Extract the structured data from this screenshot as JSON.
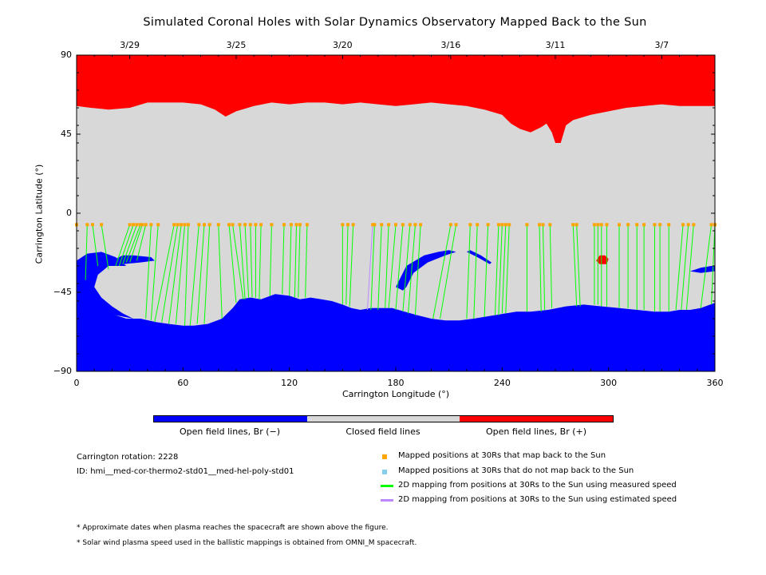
{
  "chart_data": {
    "type": "map",
    "title": "Simulated Coronal Holes with Solar Dynamics Observatory Mapped Back to the Sun",
    "xlabel": "Carrington Longitude (°)",
    "ylabel": "Carrington Latitude (°)",
    "xlim": [
      0,
      360
    ],
    "ylim": [
      -90,
      90
    ],
    "x_ticks": [
      "0",
      "60",
      "120",
      "180",
      "240",
      "300",
      "360"
    ],
    "y_ticks": [
      "90",
      "45",
      "0",
      "−45",
      "−90"
    ],
    "date_ticks": [
      {
        "label": "3/29",
        "lon": 30
      },
      {
        "label": "3/25",
        "lon": 90
      },
      {
        "label": "3/20",
        "lon": 150
      },
      {
        "label": "3/16",
        "lon": 211
      },
      {
        "label": "3/11",
        "lon": 270
      },
      {
        "label": "3/7",
        "lon": 330
      }
    ],
    "colors": {
      "open_negative": "#0000ff",
      "closed": "#d8d8d8",
      "open_positive": "#ff0000",
      "mapped_ok": "#ffa500",
      "not_mapped": "#87ceeb",
      "line_measured": "#00ff00",
      "line_estimated": "#bb88ff"
    },
    "regions": {
      "north_boundary": [
        [
          0,
          61
        ],
        [
          8,
          60
        ],
        [
          18,
          59
        ],
        [
          30,
          60
        ],
        [
          40,
          63
        ],
        [
          50,
          63
        ],
        [
          60,
          63
        ],
        [
          70,
          62
        ],
        [
          78,
          59
        ],
        [
          84,
          55
        ],
        [
          90,
          58
        ],
        [
          100,
          61
        ],
        [
          110,
          63
        ],
        [
          120,
          62
        ],
        [
          130,
          63
        ],
        [
          140,
          63
        ],
        [
          150,
          62
        ],
        [
          160,
          63
        ],
        [
          170,
          62
        ],
        [
          180,
          61
        ],
        [
          190,
          62
        ],
        [
          200,
          63
        ],
        [
          210,
          62
        ],
        [
          220,
          61
        ],
        [
          230,
          59
        ],
        [
          240,
          56
        ],
        [
          245,
          51
        ],
        [
          250,
          48
        ],
        [
          256,
          46
        ],
        [
          262,
          49
        ],
        [
          265,
          51
        ],
        [
          268,
          46
        ],
        [
          270,
          40
        ],
        [
          273,
          40
        ],
        [
          276,
          50
        ],
        [
          280,
          53
        ],
        [
          290,
          56
        ],
        [
          300,
          58
        ],
        [
          310,
          60
        ],
        [
          320,
          61
        ],
        [
          330,
          62
        ],
        [
          340,
          61
        ],
        [
          350,
          61
        ],
        [
          360,
          61
        ]
      ],
      "south_boundary": [
        [
          0,
          -36
        ],
        [
          5,
          -42
        ],
        [
          10,
          -48
        ],
        [
          16,
          -53
        ],
        [
          22,
          -58
        ],
        [
          28,
          -60
        ],
        [
          36,
          -60
        ],
        [
          45,
          -62
        ],
        [
          52,
          -63
        ],
        [
          60,
          -64
        ],
        [
          66,
          -64
        ],
        [
          74,
          -63
        ],
        [
          82,
          -60
        ],
        [
          88,
          -54
        ],
        [
          92,
          -49
        ],
        [
          98,
          -48
        ],
        [
          104,
          -49
        ],
        [
          112,
          -46
        ],
        [
          120,
          -47
        ],
        [
          126,
          -49
        ],
        [
          132,
          -48
        ],
        [
          138,
          -49
        ],
        [
          144,
          -50
        ],
        [
          150,
          -52
        ],
        [
          155,
          -54
        ],
        [
          160,
          -55
        ],
        [
          166,
          -54
        ],
        [
          172,
          -54
        ],
        [
          178,
          -54
        ],
        [
          185,
          -56
        ],
        [
          192,
          -58
        ],
        [
          200,
          -60
        ],
        [
          208,
          -61
        ],
        [
          216,
          -61
        ],
        [
          224,
          -60
        ],
        [
          230,
          -59
        ],
        [
          236,
          -58
        ],
        [
          242,
          -57
        ],
        [
          248,
          -56
        ],
        [
          256,
          -56
        ],
        [
          266,
          -55
        ],
        [
          276,
          -53
        ],
        [
          286,
          -52
        ],
        [
          296,
          -53
        ],
        [
          306,
          -54
        ],
        [
          316,
          -55
        ],
        [
          326,
          -56
        ],
        [
          334,
          -56
        ],
        [
          340,
          -55
        ],
        [
          346,
          -55
        ],
        [
          352,
          -54
        ],
        [
          360,
          -51
        ]
      ],
      "positive_island": [
        [
          293,
          -27
        ],
        [
          295,
          -24
        ],
        [
          298,
          -24
        ],
        [
          300,
          -26
        ],
        [
          299,
          -29
        ],
        [
          295,
          -29
        ]
      ],
      "negative_islands": [
        [
          [
            0,
            -27
          ],
          [
            6,
            -23
          ],
          [
            14,
            -22
          ],
          [
            22,
            -25
          ],
          [
            28,
            -30
          ],
          [
            25,
            -30
          ],
          [
            18,
            -30
          ],
          [
            12,
            -35
          ],
          [
            10,
            -42
          ],
          [
            14,
            -48
          ],
          [
            20,
            -53
          ],
          [
            26,
            -57
          ],
          [
            32,
            -60
          ],
          [
            22,
            -58
          ],
          [
            14,
            -52
          ],
          [
            8,
            -47
          ],
          [
            4,
            -42
          ],
          [
            0,
            -38
          ]
        ],
        [
          [
            18,
            -28
          ],
          [
            26,
            -24
          ],
          [
            32,
            -24
          ],
          [
            42,
            -25
          ],
          [
            44,
            -27
          ],
          [
            36,
            -28
          ],
          [
            26,
            -29
          ]
        ],
        [
          [
            180,
            -42
          ],
          [
            186,
            -30
          ],
          [
            196,
            -24
          ],
          [
            204,
            -22
          ],
          [
            210,
            -21
          ],
          [
            214,
            -22
          ],
          [
            208,
            -24
          ],
          [
            198,
            -28
          ],
          [
            190,
            -34
          ],
          [
            186,
            -42
          ],
          [
            184,
            -44
          ]
        ],
        [
          [
            222,
            -21
          ],
          [
            228,
            -24
          ],
          [
            234,
            -28
          ],
          [
            233,
            -29
          ],
          [
            226,
            -25
          ],
          [
            220,
            -22
          ]
        ],
        [
          [
            346,
            -33
          ],
          [
            352,
            -31
          ],
          [
            358,
            -30
          ],
          [
            360,
            -30
          ],
          [
            360,
            -33
          ],
          [
            352,
            -34
          ]
        ]
      ]
    },
    "trace_latitude": -6.5,
    "traces": [
      {
        "lon": 0,
        "end": [
          0,
          -36
        ]
      },
      {
        "lon": 6,
        "end": [
          5,
          -38
        ]
      },
      {
        "lon": 9,
        "end": [
          12,
          -30
        ]
      },
      {
        "lon": 14,
        "end": [
          18,
          -32
        ]
      },
      {
        "lon": 30,
        "end": [
          22,
          -30
        ]
      },
      {
        "lon": 32,
        "end": [
          24,
          -30
        ]
      },
      {
        "lon": 34,
        "end": [
          26,
          -29
        ]
      },
      {
        "lon": 36,
        "end": [
          28,
          -28
        ]
      },
      {
        "lon": 37,
        "end": [
          30,
          -28
        ]
      },
      {
        "lon": 39,
        "end": [
          34,
          -27
        ]
      },
      {
        "lon": 42,
        "end": [
          39,
          -60
        ]
      },
      {
        "lon": 46,
        "end": [
          42,
          -61
        ]
      },
      {
        "lon": 55,
        "end": [
          44,
          -62
        ]
      },
      {
        "lon": 57,
        "end": [
          48,
          -62
        ]
      },
      {
        "lon": 59,
        "end": [
          52,
          -63
        ]
      },
      {
        "lon": 61,
        "end": [
          56,
          -63
        ]
      },
      {
        "lon": 63,
        "end": [
          61,
          -64
        ]
      },
      {
        "lon": 69,
        "end": [
          64,
          -64
        ]
      },
      {
        "lon": 72,
        "end": [
          68,
          -63
        ]
      },
      {
        "lon": 75,
        "end": [
          72,
          -63
        ]
      },
      {
        "lon": 80,
        "end": [
          82,
          -60
        ]
      },
      {
        "lon": 86,
        "end": [
          90,
          -51
        ]
      },
      {
        "lon": 88,
        "end": [
          94,
          -49
        ]
      },
      {
        "lon": 92,
        "end": [
          95,
          -49
        ]
      },
      {
        "lon": 95,
        "end": [
          97,
          -48
        ]
      },
      {
        "lon": 98,
        "end": [
          99,
          -48
        ]
      },
      {
        "lon": 101,
        "end": [
          101,
          -48
        ]
      },
      {
        "lon": 104,
        "end": [
          103,
          -49
        ]
      },
      {
        "lon": 110,
        "end": [
          109,
          -47
        ]
      },
      {
        "lon": 117,
        "end": [
          116,
          -46
        ]
      },
      {
        "lon": 121,
        "end": [
          120,
          -47
        ]
      },
      {
        "lon": 124,
        "end": [
          123,
          -48
        ]
      },
      {
        "lon": 126,
        "end": [
          125,
          -48
        ]
      },
      {
        "lon": 130,
        "end": [
          129,
          -48
        ]
      },
      {
        "lon": 150,
        "end": [
          150,
          -52
        ]
      },
      {
        "lon": 153,
        "end": [
          152,
          -52
        ]
      },
      {
        "lon": 156,
        "end": [
          154,
          -53
        ]
      },
      {
        "lon": 168,
        "end": [
          166,
          -55
        ]
      },
      {
        "lon": 172,
        "end": [
          170,
          -55
        ]
      },
      {
        "lon": 176,
        "end": [
          174,
          -54
        ]
      },
      {
        "lon": 180,
        "end": [
          176,
          -54
        ]
      },
      {
        "lon": 184,
        "end": [
          180,
          -55
        ]
      },
      {
        "lon": 188,
        "end": [
          184,
          -56
        ]
      },
      {
        "lon": 191,
        "end": [
          187,
          -57
        ]
      },
      {
        "lon": 194,
        "end": [
          191,
          -58
        ]
      },
      {
        "lon": 211,
        "end": [
          201,
          -60
        ]
      },
      {
        "lon": 214,
        "end": [
          205,
          -60
        ]
      },
      {
        "lon": 222,
        "end": [
          220,
          -60
        ]
      },
      {
        "lon": 226,
        "end": [
          224,
          -60
        ]
      },
      {
        "lon": 232,
        "end": [
          230,
          -59
        ]
      },
      {
        "lon": 238,
        "end": [
          236,
          -58
        ]
      },
      {
        "lon": 240,
        "end": [
          238,
          -58
        ]
      },
      {
        "lon": 242,
        "end": [
          240,
          -57
        ]
      },
      {
        "lon": 244,
        "end": [
          242,
          -57
        ]
      },
      {
        "lon": 254,
        "end": [
          254,
          -56
        ]
      },
      {
        "lon": 261,
        "end": [
          262,
          -56
        ]
      },
      {
        "lon": 263,
        "end": [
          264,
          -55
        ]
      },
      {
        "lon": 267,
        "end": [
          268,
          -54
        ]
      },
      {
        "lon": 280,
        "end": [
          282,
          -53
        ]
      },
      {
        "lon": 282,
        "end": [
          284,
          -53
        ]
      },
      {
        "lon": 292,
        "end": [
          292,
          -52
        ]
      },
      {
        "lon": 294,
        "end": [
          294,
          -52
        ]
      },
      {
        "lon": 296,
        "end": [
          296,
          -53
        ]
      },
      {
        "lon": 299,
        "end": [
          299,
          -53
        ]
      },
      {
        "lon": 306,
        "end": [
          306,
          -54
        ]
      },
      {
        "lon": 311,
        "end": [
          311,
          -54
        ]
      },
      {
        "lon": 316,
        "end": [
          316,
          -55
        ]
      },
      {
        "lon": 320,
        "end": [
          320,
          -55
        ]
      },
      {
        "lon": 326,
        "end": [
          326,
          -56
        ]
      },
      {
        "lon": 329,
        "end": [
          329,
          -56
        ]
      },
      {
        "lon": 334,
        "end": [
          334,
          -56
        ]
      },
      {
        "lon": 342,
        "end": [
          338,
          -55
        ]
      },
      {
        "lon": 345,
        "end": [
          341,
          -55
        ]
      },
      {
        "lon": 348,
        "end": [
          344,
          -55
        ]
      },
      {
        "lon": 358,
        "end": [
          352,
          -54
        ]
      },
      {
        "lon": 360,
        "end": [
          358,
          -52
        ]
      }
    ],
    "estimated_traces": [
      {
        "lon": 167,
        "end": [
          164,
          -55
        ]
      }
    ]
  },
  "colorbar": {
    "labels": [
      "Open field lines, Br (−)",
      "Closed field lines",
      "Open field lines, Br (+)"
    ]
  },
  "info": {
    "rotation": "Carrington rotation: 2228",
    "id": "ID: hmi__med-cor-thermo2-std01__med-hel-poly-std01"
  },
  "legend": [
    {
      "text": "Mapped positions at 30Rs that map back to the Sun",
      "kind": "square",
      "color": "#ffa500"
    },
    {
      "text": "Mapped positions at 30Rs that do not map back to the Sun",
      "kind": "square",
      "color": "#87ceeb"
    },
    {
      "text": "2D mapping from positions at 30Rs to the Sun using measured speed",
      "kind": "line",
      "color": "#00ff00"
    },
    {
      "text": "2D mapping from positions at 30Rs to the Sun using estimated speed",
      "kind": "line",
      "color": "#bb88ff"
    }
  ],
  "notes": [
    "* Approximate dates when plasma reaches the spacecraft are shown above the figure.",
    "* Solar wind plasma speed used in the ballistic mappings is obtained from OMNI_M spacecraft."
  ]
}
